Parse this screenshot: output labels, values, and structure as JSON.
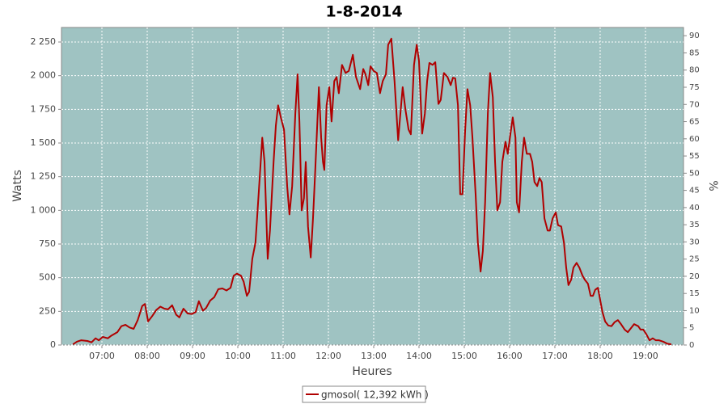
{
  "chart_data": {
    "type": "line",
    "title": "1-8-2014",
    "x_label": "Heures",
    "y_label": "Watts",
    "y2_label": "%",
    "x": [
      6.36,
      6.45,
      6.54,
      6.68,
      6.77,
      6.86,
      6.93,
      7.02,
      7.13,
      7.21,
      7.34,
      7.43,
      7.52,
      7.61,
      7.7,
      7.79,
      7.89,
      7.95,
      8.02,
      8.11,
      8.2,
      8.29,
      8.38,
      8.46,
      8.55,
      8.64,
      8.71,
      8.8,
      8.89,
      8.98,
      9.07,
      9.14,
      9.23,
      9.3,
      9.39,
      9.48,
      9.57,
      9.66,
      9.75,
      9.84,
      9.91,
      9.98,
      10.07,
      10.13,
      10.2,
      10.25,
      10.32,
      10.39,
      10.46,
      10.54,
      10.59,
      10.66,
      10.71,
      10.79,
      10.84,
      10.89,
      10.95,
      11.02,
      11.09,
      11.14,
      11.2,
      11.27,
      11.32,
      11.36,
      11.41,
      11.46,
      11.5,
      11.55,
      11.61,
      11.66,
      11.71,
      11.79,
      11.84,
      11.88,
      11.91,
      11.96,
      12.02,
      12.07,
      12.13,
      12.18,
      12.23,
      12.3,
      12.38,
      12.45,
      12.54,
      12.61,
      12.7,
      12.77,
      12.82,
      12.88,
      12.93,
      13.0,
      13.07,
      13.14,
      13.2,
      13.27,
      13.32,
      13.39,
      13.46,
      13.54,
      13.59,
      13.64,
      13.7,
      13.77,
      13.82,
      13.89,
      13.95,
      14.0,
      14.07,
      14.13,
      14.18,
      14.23,
      14.3,
      14.36,
      14.43,
      14.48,
      14.55,
      14.63,
      14.7,
      14.75,
      14.8,
      14.86,
      14.91,
      14.96,
      15.02,
      15.07,
      15.13,
      15.18,
      15.25,
      15.3,
      15.36,
      15.41,
      15.46,
      15.52,
      15.57,
      15.63,
      15.68,
      15.73,
      15.79,
      15.84,
      15.91,
      15.96,
      16.02,
      16.07,
      16.13,
      16.16,
      16.21,
      16.27,
      16.32,
      16.38,
      16.45,
      16.5,
      16.55,
      16.61,
      16.66,
      16.71,
      16.77,
      16.84,
      16.89,
      16.95,
      17.02,
      17.07,
      17.14,
      17.2,
      17.25,
      17.3,
      17.36,
      17.41,
      17.48,
      17.54,
      17.61,
      17.66,
      17.73,
      17.79,
      17.84,
      17.89,
      17.95,
      18.0,
      18.05,
      18.11,
      18.18,
      18.25,
      18.32,
      18.39,
      18.46,
      18.54,
      18.61,
      18.68,
      18.75,
      18.84,
      18.89,
      18.95,
      19.02,
      19.09,
      19.16,
      19.23,
      19.3,
      19.39,
      19.48,
      19.57
    ],
    "series": [
      {
        "name": "gmosol( 12,392 kWh )",
        "color": "#b00000",
        "values": [
          5,
          25,
          35,
          30,
          20,
          50,
          35,
          60,
          50,
          70,
          95,
          140,
          150,
          130,
          120,
          185,
          290,
          305,
          175,
          215,
          260,
          285,
          270,
          265,
          295,
          225,
          205,
          270,
          235,
          230,
          245,
          325,
          255,
          275,
          330,
          355,
          415,
          420,
          405,
          425,
          515,
          530,
          515,
          470,
          365,
          395,
          640,
          760,
          1120,
          1540,
          1360,
          640,
          850,
          1360,
          1630,
          1780,
          1690,
          1600,
          1180,
          970,
          1180,
          1720,
          2010,
          1660,
          1000,
          1090,
          1360,
          880,
          650,
          940,
          1300,
          1915,
          1540,
          1360,
          1300,
          1780,
          1915,
          1660,
          1960,
          1990,
          1870,
          2080,
          2020,
          2035,
          2155,
          1990,
          1900,
          2050,
          2010,
          1930,
          2070,
          2035,
          2020,
          1870,
          1960,
          2010,
          2230,
          2275,
          1960,
          1520,
          1720,
          1915,
          1750,
          1600,
          1565,
          2080,
          2230,
          2110,
          1570,
          1720,
          1960,
          2095,
          2080,
          2100,
          1790,
          1820,
          2020,
          1990,
          1930,
          1985,
          1980,
          1780,
          1120,
          1120,
          1600,
          1900,
          1780,
          1540,
          1120,
          760,
          545,
          700,
          1060,
          1720,
          2020,
          1840,
          1360,
          1000,
          1060,
          1360,
          1510,
          1420,
          1570,
          1690,
          1540,
          1060,
          985,
          1360,
          1540,
          1420,
          1420,
          1360,
          1210,
          1180,
          1240,
          1210,
          940,
          850,
          850,
          940,
          985,
          890,
          880,
          760,
          575,
          445,
          485,
          575,
          610,
          575,
          515,
          485,
          455,
          365,
          365,
          410,
          425,
          335,
          245,
          175,
          145,
          140,
          170,
          185,
          155,
          115,
          95,
          125,
          155,
          140,
          115,
          115,
          80,
          35,
          50,
          35,
          35,
          25,
          10,
          5
        ]
      }
    ],
    "xlim": [
      6.107,
      19.84
    ],
    "xticks": [
      {
        "value": 7,
        "label": "07:00"
      },
      {
        "value": 8,
        "label": "08:00"
      },
      {
        "value": 9,
        "label": "09:00"
      },
      {
        "value": 10,
        "label": "10:00"
      },
      {
        "value": 11,
        "label": "11:00"
      },
      {
        "value": 12,
        "label": "12:00"
      },
      {
        "value": 13,
        "label": "13:00"
      },
      {
        "value": 14,
        "label": "14:00"
      },
      {
        "value": 15,
        "label": "15:00"
      },
      {
        "value": 16,
        "label": "16:00"
      },
      {
        "value": 17,
        "label": "17:00"
      },
      {
        "value": 18,
        "label": "18:00"
      },
      {
        "value": 19,
        "label": "19:00"
      }
    ],
    "ylim": [
      0,
      2358
    ],
    "yticks": [
      0,
      250,
      500,
      750,
      {
        "value": 1000,
        "label": "1 000"
      },
      {
        "value": 1250,
        "label": "1 250"
      },
      {
        "value": 1500,
        "label": "1 500"
      },
      {
        "value": 1750,
        "label": "1 750"
      },
      {
        "value": 2000,
        "label": "2 000"
      },
      {
        "value": 2250,
        "label": "2 250"
      }
    ],
    "y2lim": [
      0,
      92.4
    ],
    "y2ticks": [
      0,
      5,
      10,
      15,
      20,
      25,
      30,
      35,
      40,
      45,
      50,
      55,
      60,
      65,
      70,
      75,
      80,
      85,
      90
    ],
    "grid": true,
    "plot_background": "#9fc3c2",
    "legend": "bottom"
  }
}
